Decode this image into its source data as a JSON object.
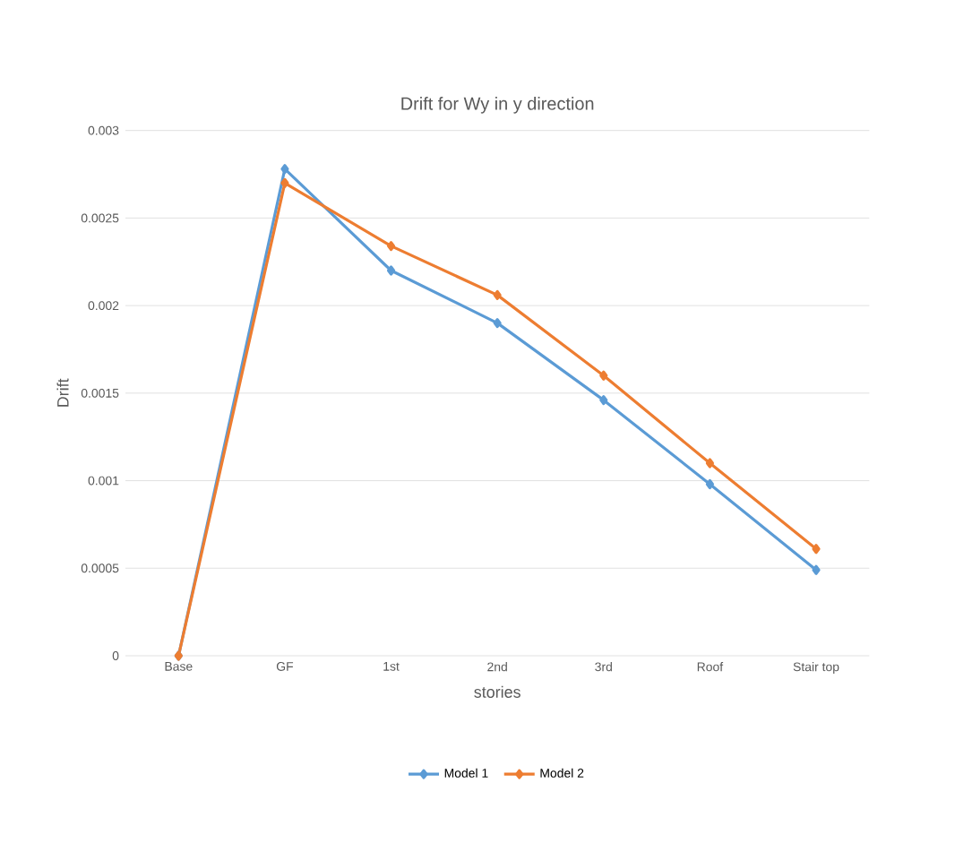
{
  "chart_data": {
    "type": "line",
    "title": "Drift for Wy in y direction",
    "xlabel": "stories",
    "ylabel": "Drift",
    "categories": [
      "Base",
      "GF",
      "1st",
      "2nd",
      "3rd",
      "Roof",
      "Stair top"
    ],
    "series": [
      {
        "name": "Model 1",
        "color": "#5b9bd5",
        "values": [
          0,
          0.00278,
          0.0022,
          0.0019,
          0.00146,
          0.00098,
          0.00049
        ]
      },
      {
        "name": "Model 2",
        "color": "#ed7d31",
        "values": [
          0,
          0.0027,
          0.00234,
          0.00206,
          0.0016,
          0.0011,
          0.00061
        ]
      }
    ],
    "ylim": [
      0,
      0.003
    ],
    "yticks": [
      0,
      0.0005,
      0.001,
      0.0015,
      0.002,
      0.0025,
      0.003
    ],
    "grid": "y",
    "legend": "bottom",
    "marker": "diamond",
    "line_style": "solid"
  }
}
